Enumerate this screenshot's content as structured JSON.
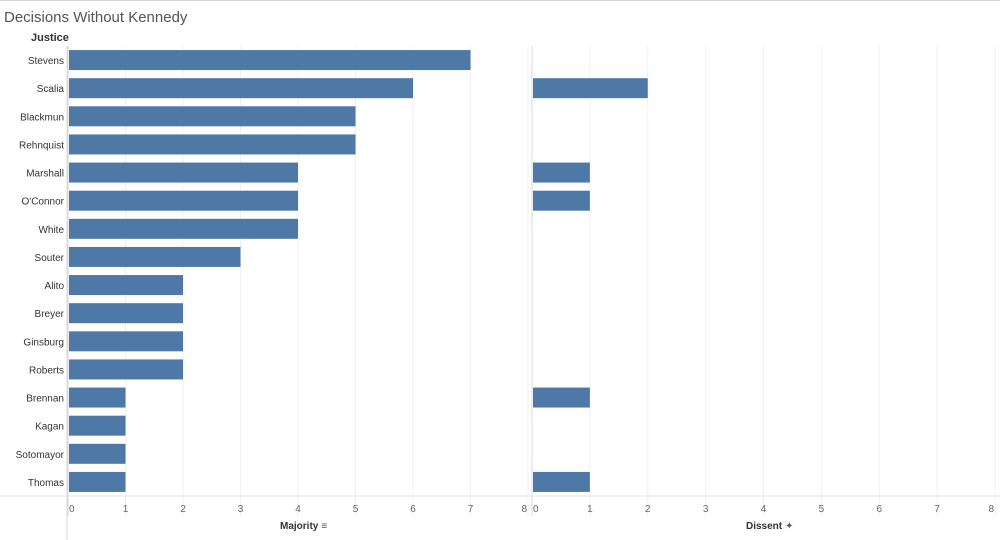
{
  "title": "Decisions Without Kennedy",
  "row_header": "Justice",
  "chart_data": {
    "type": "bar",
    "orientation": "horizontal",
    "categories": [
      "Stevens",
      "Scalia",
      "Blackmun",
      "Rehnquist",
      "Marshall",
      "O'Connor",
      "White",
      "Souter",
      "Alito",
      "Breyer",
      "Ginsburg",
      "Roberts",
      "Brennan",
      "Kagan",
      "Sotomayor",
      "Thomas"
    ],
    "series": [
      {
        "name": "Majority",
        "values": [
          7,
          6,
          5,
          5,
          4,
          4,
          4,
          3,
          2,
          2,
          2,
          2,
          1,
          1,
          1,
          1
        ]
      },
      {
        "name": "Dissent",
        "values": [
          0,
          2,
          0,
          0,
          1,
          1,
          0,
          0,
          0,
          0,
          0,
          0,
          1,
          0,
          0,
          1
        ]
      }
    ],
    "xlim": [
      0,
      8
    ],
    "ticks": [
      "0",
      "1",
      "2",
      "3",
      "4",
      "5",
      "6",
      "7",
      "8"
    ],
    "grid": true,
    "bar_color": "#4e79a7"
  },
  "panels": [
    {
      "label": "Majority",
      "icon": "sort-descending-icon",
      "icon_glyph": "⩸"
    },
    {
      "label": "Dissent",
      "icon": "pin-icon",
      "icon_glyph": "✦"
    }
  ]
}
